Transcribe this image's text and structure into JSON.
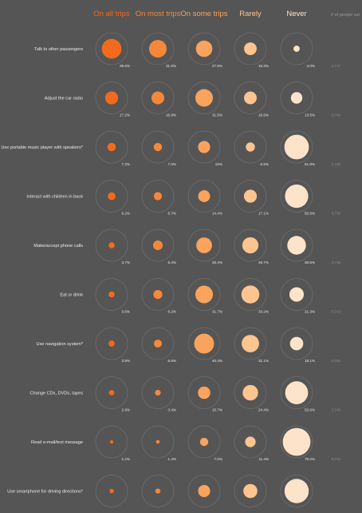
{
  "chart_data": {
    "type": "bubble-matrix",
    "columns": [
      {
        "label": "On all trips",
        "color": "#f26a1b"
      },
      {
        "label": "On most trips",
        "color": "#f5883b"
      },
      {
        "label": "On some trips",
        "color": "#f9a35d"
      },
      {
        "label": "Rarely",
        "color": "#fcc48f"
      },
      {
        "label": "Never",
        "color": "#fde3c9"
      }
    ],
    "count_header": "# of people sur",
    "rows": [
      {
        "label": "Talk to other passengers",
        "values": [
          39.6,
          31.6,
          27.6,
          16.3,
          4.0
        ],
        "value_labels": [
          "39.6%",
          "31.6%",
          "27.6%",
          "16.3%",
          "4.0%"
        ],
        "count": "5,717"
      },
      {
        "label": "Adjust the car radio",
        "values": [
          17.2,
          16.8,
          31.5,
          16.5,
          13.5
        ],
        "value_labels": [
          "17.2%",
          "16.8%",
          "31.5%",
          "16.5%",
          "13.5%"
        ],
        "count": "5,748"
      },
      {
        "label": "Use portable music player with speakers*",
        "values": [
          7.2,
          7.0,
          15,
          8.5,
          61.8
        ],
        "value_labels": [
          "7.2%",
          "7.0%",
          "15%",
          "8.5%",
          "61.8%"
        ],
        "count": "5,168"
      },
      {
        "label": "Interact with children in back",
        "values": [
          6.2,
          6.7,
          14.4,
          17.1,
          55.6
        ],
        "value_labels": [
          "6.2%",
          "6.7%",
          "14.4%",
          "17.1%",
          "55.6%"
        ],
        "count": "5,730"
      },
      {
        "label": "Make/accept phone calls",
        "values": [
          3.7,
          9.4,
          25.4,
          26.7,
          35.6
        ],
        "value_labels": [
          "3.7%",
          "9.4%",
          "25.4%",
          "26.7%",
          "35.6%"
        ],
        "count": "5,736"
      },
      {
        "label": "Eat or drink",
        "values": [
          3.6,
          8.2,
          31.7,
          33.2,
          21.3
        ],
        "value_labels": [
          "3.6%",
          "8.2%",
          "31.7%",
          "33.2%",
          "21.3%"
        ],
        "count": "5,743"
      },
      {
        "label": "Use navigation system*",
        "values": [
          3.8,
          6.6,
          40.4,
          31.1,
          18.1
        ],
        "value_labels": [
          "3.8%",
          "6.6%",
          "40.4%",
          "31.1%",
          "18.1%"
        ],
        "count": "5,085"
      },
      {
        "label": "Change CDs, DVDs, tapes",
        "values": [
          2.9,
          3.4,
          15.7,
          24.4,
          53.6
        ],
        "value_labels": [
          "2.9%",
          "3.4%",
          "15.7%",
          "24.4%",
          "53.6%"
        ],
        "count": "5,745"
      },
      {
        "label": "Read e-mail/text message",
        "values": [
          1.2,
          1.4,
          7.0,
          11.4,
          79.0
        ],
        "value_labels": [
          "1.2%",
          "1.4%",
          "7.0%",
          "11.4%",
          "79.0%"
        ],
        "count": "5,714"
      },
      {
        "label": "Use smartphone for driving directions*",
        "values": [
          2.0,
          2.6,
          15.0,
          20.2,
          60.2
        ],
        "value_labels": [
          "",
          "",
          "",
          "",
          ""
        ],
        "count": ""
      }
    ]
  }
}
